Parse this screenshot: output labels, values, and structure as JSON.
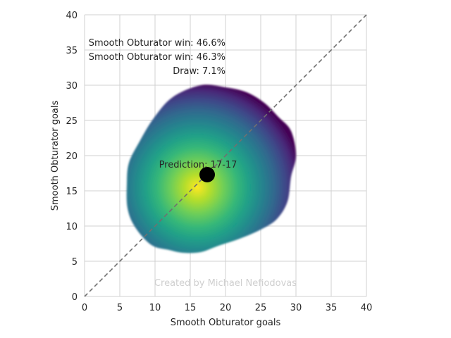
{
  "chart_data": {
    "type": "heatmap",
    "xlabel": "Smooth Obturator goals",
    "ylabel": "Smooth Obturator goals",
    "xlim": [
      0,
      40
    ],
    "ylim": [
      0,
      40
    ],
    "xticks": [
      "0",
      "5",
      "10",
      "15",
      "20",
      "25",
      "30",
      "35",
      "40"
    ],
    "yticks": [
      "0",
      "5",
      "10",
      "15",
      "20",
      "25",
      "30",
      "35",
      "40"
    ],
    "grid": true,
    "colormap": "viridis",
    "density_peak": {
      "x": 16,
      "y": 15.5
    },
    "density_outline": [
      [
        16.5,
        30
      ],
      [
        20,
        29.7
      ],
      [
        23,
        29
      ],
      [
        25.5,
        27.5
      ],
      [
        27.5,
        25.5
      ],
      [
        29.3,
        23.5
      ],
      [
        30,
        20
      ],
      [
        29.3,
        17
      ],
      [
        28.8,
        13.5
      ],
      [
        27.3,
        11
      ],
      [
        25,
        9.5
      ],
      [
        22,
        8.2
      ],
      [
        19,
        7.2
      ],
      [
        16.5,
        6.3
      ],
      [
        14,
        6.2
      ],
      [
        12,
        6.6
      ],
      [
        9.5,
        7.3
      ],
      [
        7.2,
        9.8
      ],
      [
        6.1,
        12.5
      ],
      [
        6,
        16
      ],
      [
        6.3,
        19
      ],
      [
        7.8,
        22
      ],
      [
        9.8,
        25.3
      ],
      [
        12.5,
        28.3
      ]
    ],
    "diagonal": {
      "from": [
        0,
        0
      ],
      "to": [
        40,
        40
      ],
      "style": "dashed",
      "color": "#707070"
    },
    "prediction_point": {
      "x": 17.4,
      "y": 17.3,
      "label": "Prediction: 17-17"
    },
    "annotations": [
      "Smooth Obturator win: 46.6%",
      "Smooth Obturator win: 46.3%",
      "Draw: 7.1%"
    ],
    "watermark": "Created by Michael Nefiodovas"
  }
}
